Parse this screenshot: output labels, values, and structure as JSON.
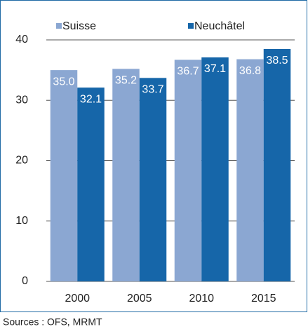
{
  "chart_data": {
    "type": "bar",
    "categories": [
      "2000",
      "2005",
      "2010",
      "2015"
    ],
    "series": [
      {
        "name": "Suisse",
        "color": "#8ba7d2",
        "values": [
          35.0,
          35.2,
          36.7,
          36.8
        ],
        "value_labels": [
          "35.0",
          "35.2",
          "36.7",
          "36.8"
        ]
      },
      {
        "name": "Neuchâtel",
        "color": "#1666a9",
        "values": [
          32.1,
          33.7,
          37.1,
          38.5
        ],
        "value_labels": [
          "32.1",
          "33.7",
          "37.1",
          "38.5"
        ]
      }
    ],
    "ylim": [
      0,
      40
    ],
    "yticks": [
      0,
      10,
      20,
      30,
      40
    ],
    "grid": true,
    "legend": "top",
    "source": "Sources : OFS, MRMT"
  }
}
